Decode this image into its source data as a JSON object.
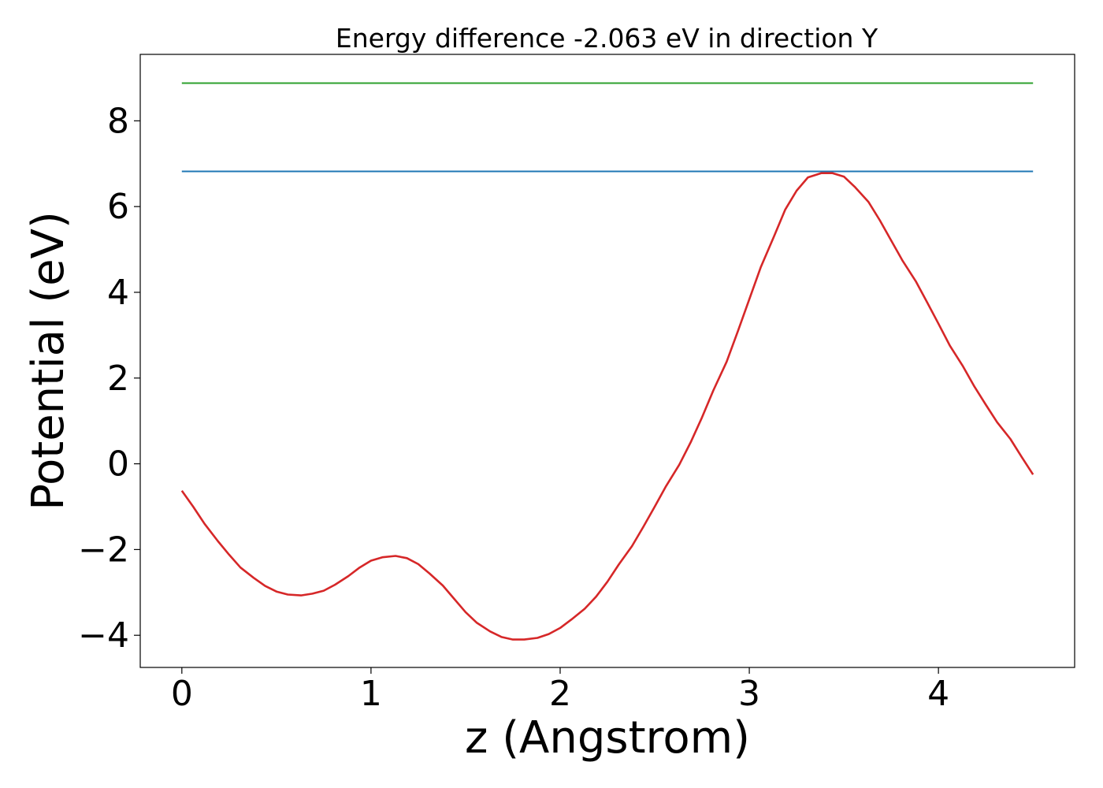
{
  "chart_data": {
    "type": "line",
    "title": "Energy difference -2.063 eV in direction Y",
    "xlabel": "z (Angstrom)",
    "ylabel": "Potential (eV)",
    "xlim": [
      -0.22,
      4.72
    ],
    "ylim": [
      -4.75,
      9.55
    ],
    "xticks": [
      0,
      1,
      2,
      3,
      4
    ],
    "xtick_labels": [
      "0",
      "1",
      "2",
      "3",
      "4"
    ],
    "yticks": [
      -4,
      -2,
      0,
      2,
      4,
      6,
      8
    ],
    "ytick_labels": [
      "−4",
      "−2",
      "0",
      "2",
      "4",
      "6",
      "8"
    ],
    "grid": false,
    "legend": "none",
    "series": [
      {
        "color": "#2ca02c",
        "kind": "hline",
        "x": [
          0,
          4.5
        ],
        "y": [
          8.88,
          8.88
        ]
      },
      {
        "color": "#1f77b4",
        "kind": "hline",
        "x": [
          0,
          4.5
        ],
        "y": [
          6.82,
          6.82
        ]
      },
      {
        "color": "#d62728",
        "kind": "curve",
        "x": [
          0,
          0.06,
          0.12,
          0.19,
          0.25,
          0.31,
          0.38,
          0.44,
          0.5,
          0.56,
          0.63,
          0.69,
          0.75,
          0.81,
          0.88,
          0.94,
          1.0,
          1.06,
          1.13,
          1.19,
          1.25,
          1.31,
          1.38,
          1.44,
          1.5,
          1.56,
          1.63,
          1.69,
          1.75,
          1.81,
          1.88,
          1.94,
          2.0,
          2.06,
          2.13,
          2.19,
          2.25,
          2.31,
          2.38,
          2.44,
          2.5,
          2.56,
          2.63,
          2.69,
          2.75,
          2.81,
          2.88,
          2.94,
          3.0,
          3.06,
          3.13,
          3.19,
          3.25,
          3.31,
          3.38,
          3.44,
          3.5,
          3.56,
          3.63,
          3.69,
          3.75,
          3.81,
          3.88,
          3.94,
          4.0,
          4.06,
          4.13,
          4.19,
          4.25,
          4.31,
          4.38,
          4.44,
          4.5
        ],
        "y": [
          -0.63,
          -1.0,
          -1.4,
          -1.8,
          -2.12,
          -2.42,
          -2.66,
          -2.85,
          -2.98,
          -3.05,
          -3.07,
          -3.03,
          -2.96,
          -2.82,
          -2.62,
          -2.42,
          -2.26,
          -2.18,
          -2.15,
          -2.2,
          -2.34,
          -2.56,
          -2.84,
          -3.15,
          -3.46,
          -3.71,
          -3.91,
          -4.04,
          -4.1,
          -4.1,
          -4.06,
          -3.97,
          -3.83,
          -3.63,
          -3.38,
          -3.1,
          -2.75,
          -2.35,
          -1.92,
          -1.47,
          -1.0,
          -0.52,
          -0.02,
          0.5,
          1.08,
          1.71,
          2.38,
          3.1,
          3.84,
          4.58,
          5.3,
          5.93,
          6.37,
          6.68,
          6.78,
          6.78,
          6.7,
          6.45,
          6.11,
          5.68,
          5.21,
          4.74,
          4.26,
          3.77,
          3.27,
          2.76,
          2.27,
          1.8,
          1.38,
          0.97,
          0.58,
          0.16,
          -0.25
        ]
      }
    ]
  }
}
